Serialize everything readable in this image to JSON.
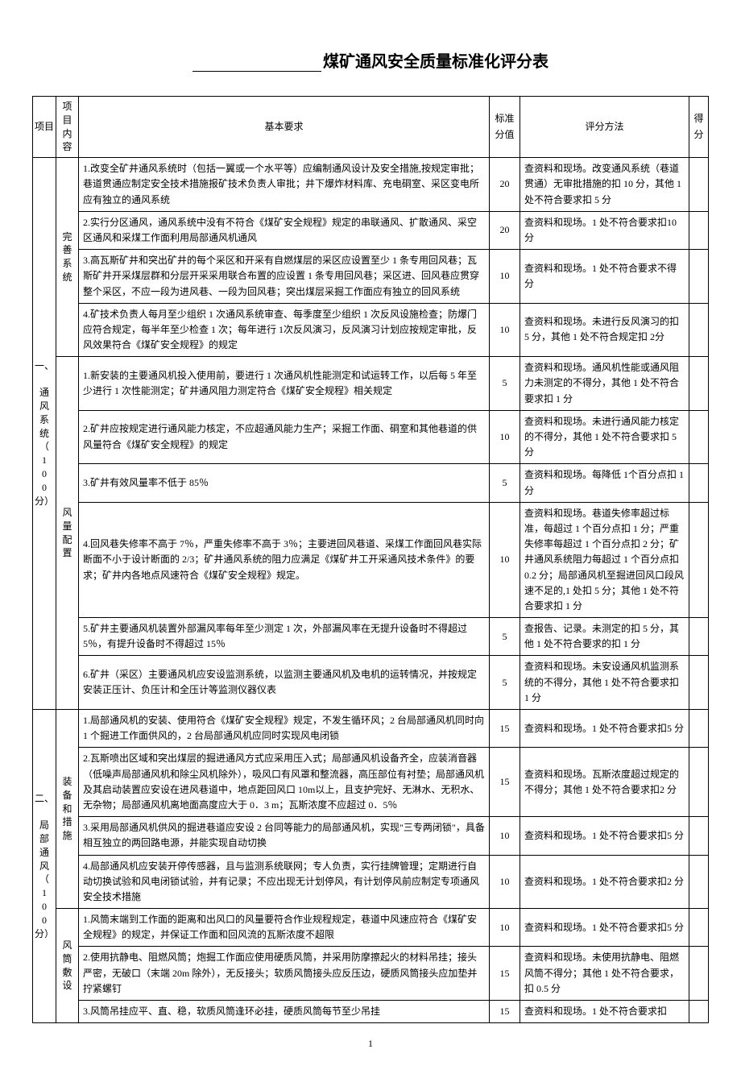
{
  "title_suffix": "煤矿通风安全质量标准化评分表",
  "page_number": "1",
  "headers": {
    "c1": "项目",
    "c2": "项目内容",
    "c3": "基本要求",
    "c4": "标准分值",
    "c5": "评分方法",
    "c6": "得分"
  },
  "section1": {
    "label": "一、\n\n通\n风\n系\n统\n（\n1\n0\n0\n分）",
    "group1": {
      "label": "完\n善\n系\n统",
      "rows": [
        {
          "req": "1.改变全矿井通风系统时（包括一翼或一个水平等）应编制通风设计及安全措施,按规定审批；巷道贯通应制定安全技术措施报矿技术负责人审批；井下爆炸材料库、充电硐室、采区变电所应有独立的通风系统",
          "score": "20",
          "method": "查资料和现场。改变通风系统（巷道贯通）无审批措施的扣 10 分，其他 1 处不符合要求扣 5 分"
        },
        {
          "req": "2.实行分区通风，通风系统中没有不符合《煤矿安全规程》规定的串联通风、扩散通风、采空区通风和采煤工作面利用局部通风机通风",
          "score": "20",
          "method": "查资料和现场。1 处不符合要求扣10 分"
        },
        {
          "req": "3.高瓦斯矿井和突出矿井的每个采区和开采有自燃煤层的采区应设置至少 1 条专用回风巷；瓦斯矿井开采煤层群和分层开采采用联合布置的应设置 1 条专用回风巷；采区进、回风巷应贯穿整个采区，不应一段为进风巷、一段为回风巷；突出煤层采掘工作面应有独立的回风系统",
          "score": "10",
          "method": "查资料和现场。1 处不符合要求不得分"
        },
        {
          "req": "4.矿技术负责人每月至少组织 1 次通风系统审查、每季度至少组织 1 次反风设施检查；防爆门应符合规定，每半年至少检查 1 次；每年进行 1次反风演习，反风演习计划应按规定审批，反风效果符合《煤矿安全规程》的规定",
          "score": "10",
          "method": "查资料和现场。未进行反风演习的扣 5 分，其他 1 处不符合规定扣 2分"
        }
      ]
    },
    "group2": {
      "label": "风\n量\n配\n置",
      "rows": [
        {
          "req": "1.新安装的主要通风机投入使用前，要进行 1 次通风机性能测定和试运转工作，以后每 5 年至少进行 1 次性能测定；矿井通风阻力测定符合《煤矿安全规程》相关规定",
          "score": "5",
          "method": "查资料和现场。通风机性能或通风阻力未测定的不得分，其他 1 处不符合要求扣 1 分"
        },
        {
          "req": "2.矿井应按规定进行通风能力核定，不应超通风能力生产；采掘工作面、硐室和其他巷道的供风量符合《煤矿安全规程》的规定",
          "score": "10",
          "method": "查资料和现场。未进行通风能力核定的不得分，其他 1 处不符合要求扣 5 分"
        },
        {
          "req": "3.矿井有效风量率不低于 85％",
          "score": "5",
          "method": "查资料和现场。每降低 1个百分点扣 1 分"
        },
        {
          "req": "4.回风巷失修率不高于 7％，严重失修率不高于 3％；主要进回风巷道、采煤工作面回风巷实际断面不小于设计断面的 2/3；矿井通风系统的阻力应满足《煤矿井工开采通风技术条件》的要求；矿井内各地点风速符合《煤矿安全规程》规定。",
          "score": "10",
          "method": "查资料和现场。巷道失修率超过标准，每超过 1 个百分点扣 1 分；严重失修率每超过 1 个百分点扣 2 分；矿井通风系统阻力每超过 1 个百分点扣 0.2 分；局部通风机至掘进回风口段风速不足的,1 处扣 5 分；其他 1 处不符合要求扣 1 分"
        },
        {
          "req": "5.矿井主要通风机装置外部漏风率每年至少测定 1 次，外部漏风率在无提升设备时不得超过 5％，有提升设备时不得超过 15％",
          "score": "5",
          "method": "查报告、记录。未测定的扣 5 分，其他 1 处不符合要求的扣 1 分"
        },
        {
          "req": "6.矿井（采区）主要通风机应安设监测系统，以监测主要通风机及电机的运转情况，并按规定安装正压计、负压计和全压计等监测仪器仪表",
          "score": "5",
          "method": "查资料和现场。未安设通风机监测系统的不得分，其他 1 处不符合要求扣 1 分"
        }
      ]
    }
  },
  "section2": {
    "label": "二、\n\n局\n部\n通\n风\n（\n1\n0\n0\n分）",
    "group1": {
      "label": "装\n备\n和\n措\n施",
      "rows": [
        {
          "req": "1.局部通风机的安装、使用符合《煤矿安全规程》规定，不发生循环风；2 台局部通风机同时向 1 个掘进工作面供风的，2 台局部通风机应同时实现风电闭锁",
          "score": "15",
          "method": "查资料和现场。1 处不符合要求扣5 分"
        },
        {
          "req": "2.瓦斯喷出区域和突出煤层的掘进通风方式应采用压入式；局部通风机设备齐全，应装消音器（低噪声局部通风机和除尘风机除外），吸风口有风罩和整流器，高压部位有衬垫；局部通风机及其启动装置应安设在进风巷道中，地点距回风口 10m以上，且支护完好、无淋水、无积水、无杂物；局部通风机离地面高度应大于 0．3 m；瓦斯浓度不应超过 0．5％",
          "score": "15",
          "method": "查资料和现场。瓦斯浓度超过规定的不得分；其他 1 处不符合要求扣2 分"
        },
        {
          "req": "3.采用局部通风机供风的掘进巷道应安设 2 台同等能力的局部通风机，实现\"三专两闭锁\"，具备相互独立的两回路电源，并能实现自动切换",
          "score": "10",
          "method": "查资料和现场。1 处不符合要求扣5 分"
        },
        {
          "req": "4.局部通风机应安装开停传感器，且与监测系统联网；专人负责，实行挂牌管理；定期进行自动切换试验和风电闭锁试验，并有记录；不应出现无计划停风，有计划停风前应制定专项通风安全技术措施",
          "score": "10",
          "method": "查资料和现场。1 处不符合要求扣2 分"
        }
      ]
    },
    "group2": {
      "label": "风\n筒\n敷\n设",
      "rows": [
        {
          "req": "1.风筒末端到工作面的距离和出风口的风量要符合作业规程规定，巷道中风速应符合《煤矿安全规程》的规定，并保证工作面和回风流的瓦斯浓度不超限",
          "score": "10",
          "method": "查资料和现场。1 处不符合要求扣5 分"
        },
        {
          "req": "2.使用抗静电、阻燃风筒；炮掘工作面应使用硬质风筒，并采用防摩擦起火的材料吊挂；接头严密，无破口（末端 20m 除外），无反接头；软质风筒接头应反压边，硬质风筒接头应加垫并拧紧螺钉",
          "score": "15",
          "method": "查资料和现场。未使用抗静电、阻燃风筒不得分；其他 1 处不符合要求，扣 0.5 分"
        },
        {
          "req": "3.风筒吊挂应平、直、稳，软质风筒逢环必挂，硬质风筒每节至少吊挂",
          "score": "15",
          "method": "查资料和现场。1 处不符合要求扣"
        }
      ]
    }
  }
}
